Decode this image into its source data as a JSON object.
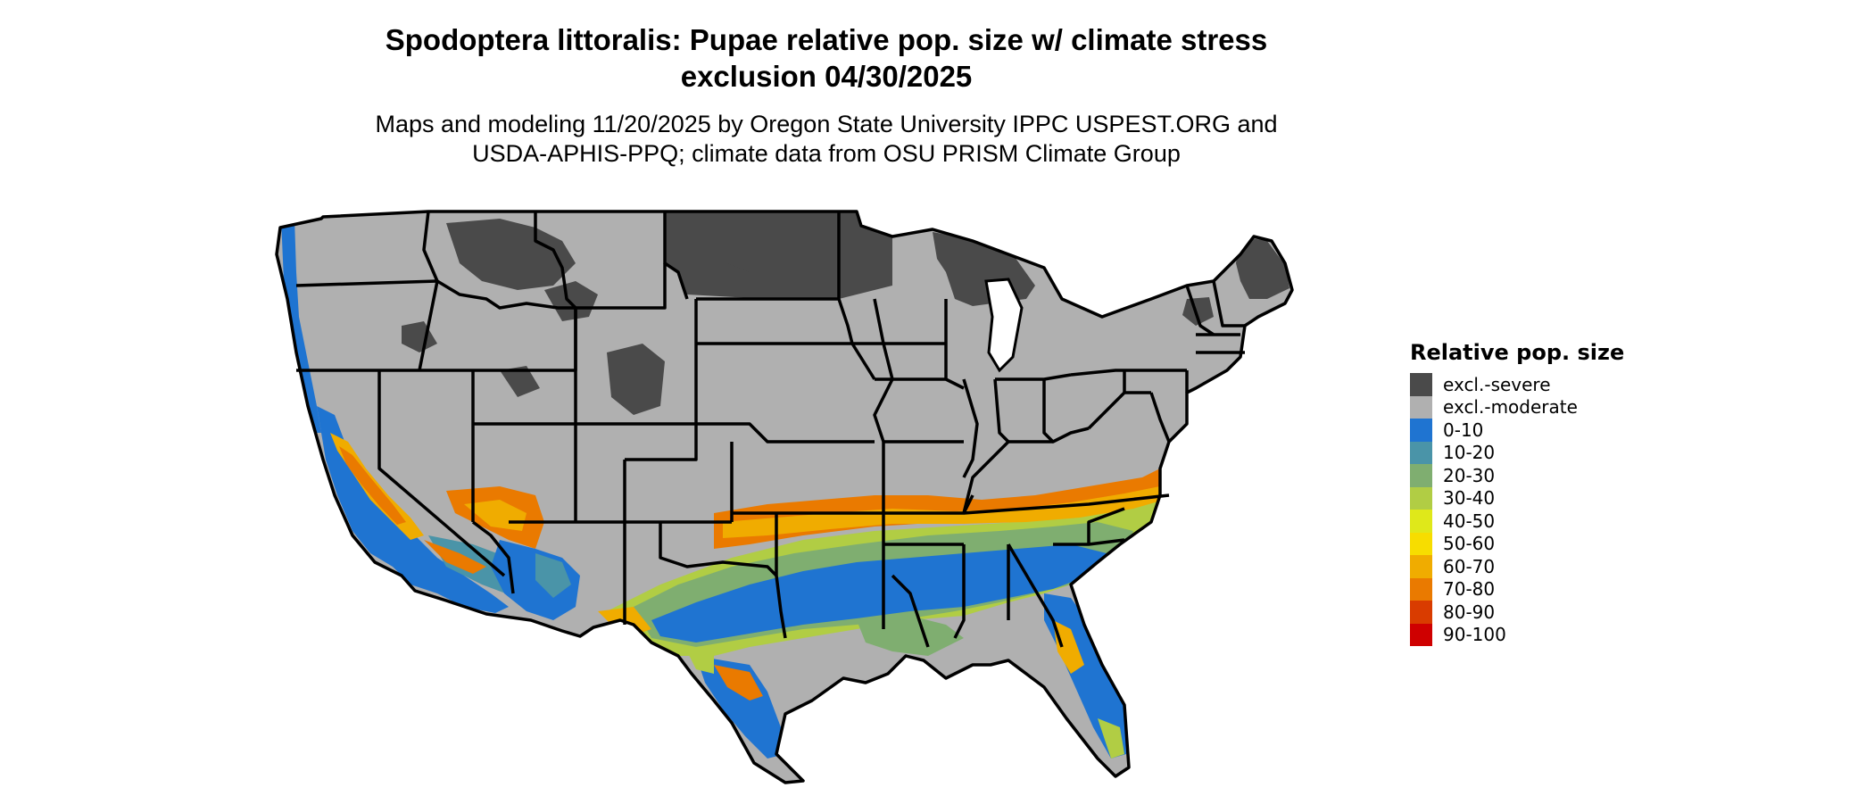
{
  "title": {
    "line1": "Spodoptera littoralis: Pupae relative pop. size w/ climate stress",
    "line2": "exclusion 04/30/2025"
  },
  "subtitle": {
    "line1": "Maps and modeling 11/20/2025 by Oregon State University IPPC USPEST.ORG and",
    "line2": "USDA-APHIS-PPQ; climate data from OSU PRISM Climate Group"
  },
  "legend": {
    "title": "Relative pop. size",
    "items": [
      {
        "label": "excl.-severe",
        "color": "#4a4a4a"
      },
      {
        "label": "excl.-moderate",
        "color": "#b0b0b0"
      },
      {
        "label": "0-10",
        "color": "#1f74d1"
      },
      {
        "label": "10-20",
        "color": "#4a94a8"
      },
      {
        "label": "20-30",
        "color": "#7fae70"
      },
      {
        "label": "30-40",
        "color": "#b1cd44"
      },
      {
        "label": "40-50",
        "color": "#dfe81a"
      },
      {
        "label": "50-60",
        "color": "#f7dd00"
      },
      {
        "label": "60-70",
        "color": "#f0ac00"
      },
      {
        "label": "70-80",
        "color": "#ea7a00"
      },
      {
        "label": "80-90",
        "color": "#d93c00"
      },
      {
        "label": "90-100",
        "color": "#cf0000"
      }
    ]
  },
  "map": {
    "region": "Contiguous United States",
    "colors": {
      "severe": "#4a4a4a",
      "moderate": "#b0b0b0",
      "low": "#1f74d1",
      "low2": "#4a94a8",
      "mid": "#7fae70",
      "mid2": "#b1cd44",
      "high": "#f0ac00",
      "high2": "#ea7a00",
      "top": "#d93c00",
      "border": "#000000"
    }
  }
}
